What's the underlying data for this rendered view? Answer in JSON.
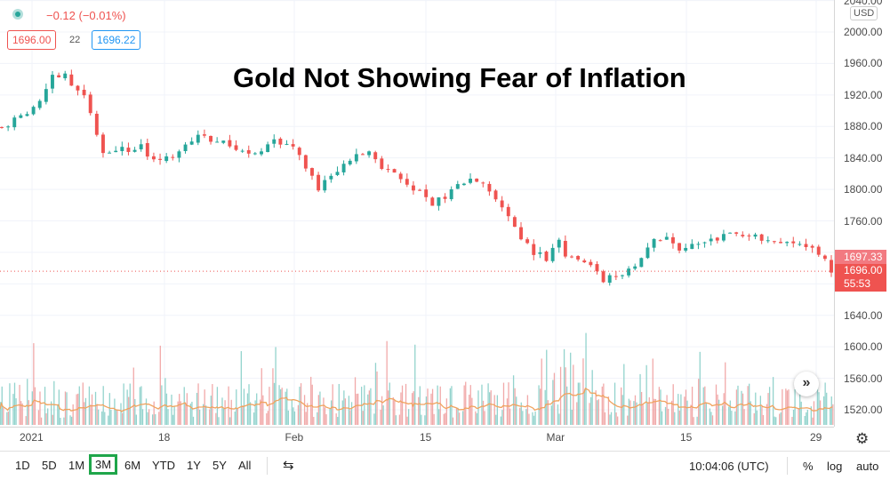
{
  "title": "Gold Not Showing Fear of Inflation",
  "header": {
    "change": "−0.12 (−0.01%)",
    "bid": "1696.00",
    "spread": "22",
    "ask": "1696.22"
  },
  "price_axis": {
    "currency": "USD",
    "ticks": [
      "2040.00",
      "2000.00",
      "1960.00",
      "1920.00",
      "1880.00",
      "1840.00",
      "1800.00",
      "1760.00",
      "1640.00",
      "1600.00",
      "1560.00",
      "1520.00"
    ],
    "last_price_tag": "1697.33",
    "current_price_tag": "1696.00",
    "countdown": "55:53"
  },
  "time_axis": {
    "ticks": [
      "2021",
      "18",
      "Feb",
      "15",
      "Mar",
      "15",
      "29"
    ]
  },
  "toolbar": {
    "ranges": [
      "1D",
      "5D",
      "1M",
      "3M",
      "6M",
      "YTD",
      "1Y",
      "5Y",
      "All"
    ],
    "active_range": "3M",
    "clock": "10:04:06 (UTC)",
    "percent": "%",
    "log": "log",
    "auto": "auto"
  },
  "colors": {
    "up": "#26a69a",
    "down": "#ef5350",
    "volume_ma": "#f0a35e",
    "active_highlight": "#1fa64a"
  },
  "chart_data": {
    "type": "candlestick",
    "title": "Gold Not Showing Fear of Inflation",
    "ylim": [
      1500,
      2045
    ],
    "ylabel": "USD",
    "x_ticks": [
      "2021",
      "18",
      "Feb",
      "15",
      "Mar",
      "15",
      "29"
    ],
    "close_path": [
      [
        1,
        1879
      ],
      [
        4,
        1892
      ],
      [
        7,
        1912
      ],
      [
        9,
        1944
      ],
      [
        11,
        1948
      ],
      [
        12,
        1933
      ],
      [
        14,
        1918
      ],
      [
        16,
        1872
      ],
      [
        17,
        1843
      ],
      [
        19,
        1852
      ],
      [
        21,
        1849
      ],
      [
        23,
        1854
      ],
      [
        24,
        1843
      ],
      [
        26,
        1838
      ],
      [
        28,
        1844
      ],
      [
        30,
        1859
      ],
      [
        32,
        1869
      ],
      [
        34,
        1861
      ],
      [
        36,
        1858
      ],
      [
        38,
        1848
      ],
      [
        40,
        1843
      ],
      [
        42,
        1851
      ],
      [
        44,
        1863
      ],
      [
        46,
        1858
      ],
      [
        47,
        1856
      ],
      [
        49,
        1830
      ],
      [
        51,
        1800
      ],
      [
        53,
        1818
      ],
      [
        55,
        1834
      ],
      [
        57,
        1843
      ],
      [
        59,
        1848
      ],
      [
        61,
        1827
      ],
      [
        63,
        1818
      ],
      [
        65,
        1808
      ],
      [
        67,
        1797
      ],
      [
        69,
        1782
      ],
      [
        71,
        1790
      ],
      [
        73,
        1806
      ],
      [
        75,
        1812
      ],
      [
        77,
        1808
      ],
      [
        79,
        1787
      ],
      [
        81,
        1764
      ],
      [
        83,
        1736
      ],
      [
        85,
        1720
      ],
      [
        87,
        1713
      ],
      [
        89,
        1735
      ],
      [
        90,
        1718
      ],
      [
        92,
        1713
      ],
      [
        94,
        1700
      ],
      [
        96,
        1684
      ],
      [
        98,
        1692
      ],
      [
        100,
        1697
      ],
      [
        102,
        1711
      ],
      [
        104,
        1734
      ],
      [
        106,
        1740
      ],
      [
        108,
        1722
      ],
      [
        110,
        1734
      ],
      [
        112,
        1732
      ],
      [
        114,
        1736
      ],
      [
        116,
        1744
      ],
      [
        118,
        1737
      ],
      [
        120,
        1740
      ],
      [
        122,
        1737
      ],
      [
        124,
        1734
      ],
      [
        126,
        1733
      ],
      [
        128,
        1729
      ],
      [
        130,
        1720
      ],
      [
        131,
        1709
      ],
      [
        132,
        1697
      ]
    ],
    "volume_ma_scale": "relative"
  }
}
